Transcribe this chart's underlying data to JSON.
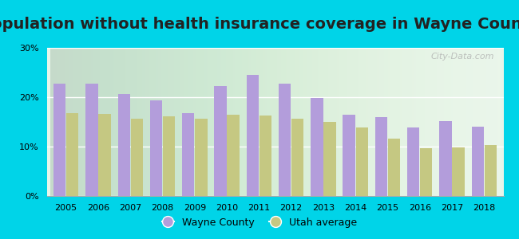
{
  "title": "Population without health insurance coverage in Wayne County",
  "years": [
    2005,
    2006,
    2007,
    2008,
    2009,
    2010,
    2011,
    2012,
    2013,
    2014,
    2015,
    2016,
    2017,
    2018
  ],
  "wayne_county": [
    22.8,
    22.8,
    20.7,
    19.3,
    16.7,
    22.3,
    24.5,
    22.7,
    19.8,
    16.5,
    15.9,
    13.9,
    15.2,
    14.1
  ],
  "utah_average": [
    16.7,
    16.6,
    15.7,
    16.2,
    15.7,
    16.5,
    16.3,
    15.6,
    15.0,
    13.8,
    11.6,
    9.7,
    9.9,
    10.4
  ],
  "wayne_color": "#b39ddb",
  "utah_color": "#c5c882",
  "bg_outer": "#00d4e8",
  "bg_plot": "#e8f5e9",
  "ylim": [
    0,
    30
  ],
  "yticks": [
    0,
    10,
    20,
    30
  ],
  "ytick_labels": [
    "0%",
    "10%",
    "20%",
    "30%"
  ],
  "watermark": "City-Data.com",
  "legend_wayne": "Wayne County",
  "legend_utah": "Utah average",
  "title_fontsize": 14,
  "bar_width": 0.38,
  "bar_gap": 0.02
}
